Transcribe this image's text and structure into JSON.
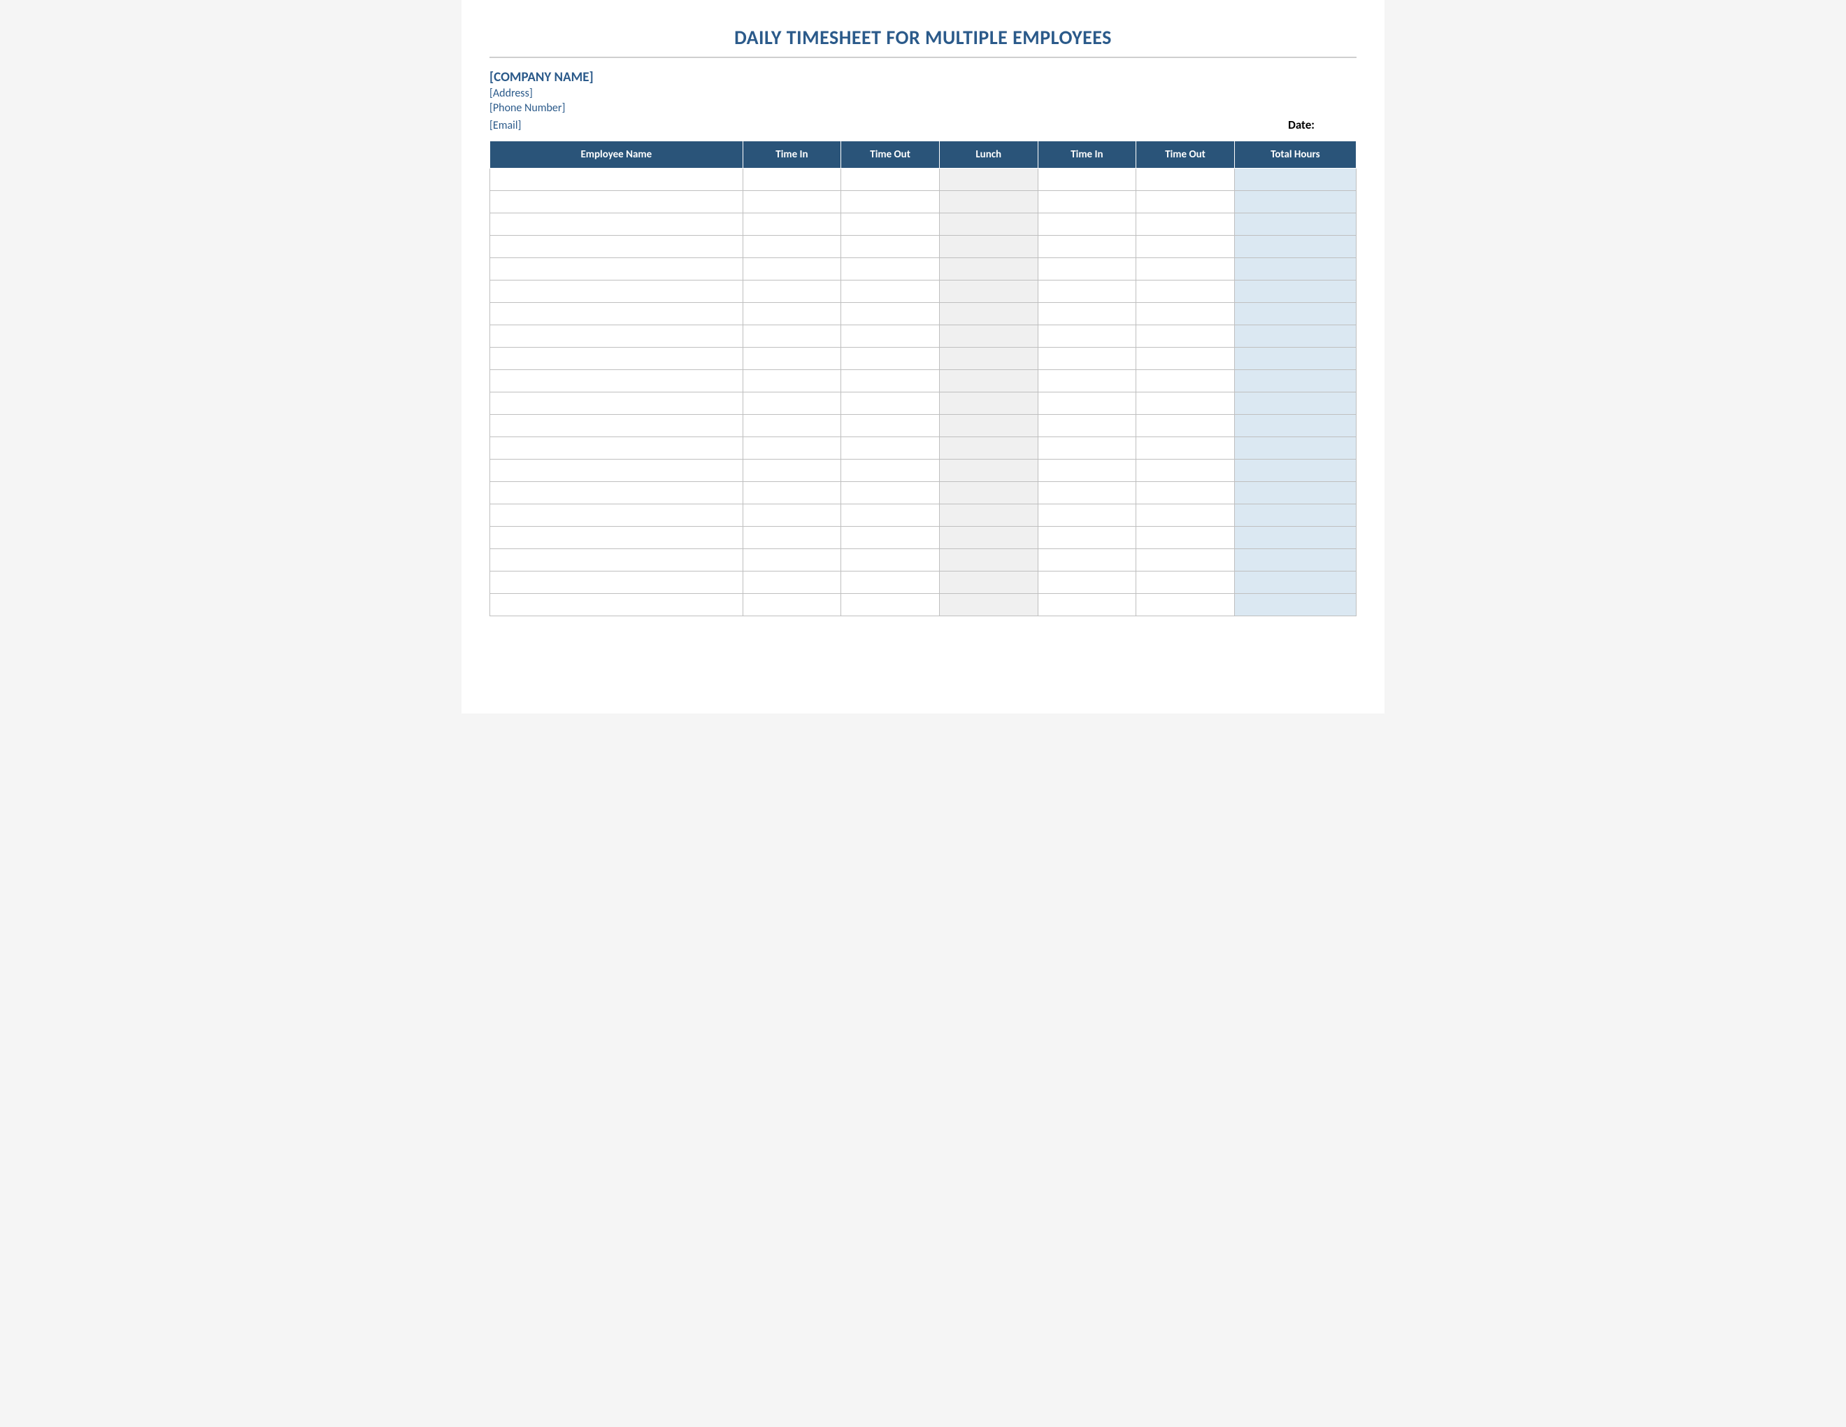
{
  "colors": {
    "title_text": "#2b5a8a",
    "rule": "#cfcfcf",
    "company_text": "#2b5a8a",
    "header_bg": "#2a5479",
    "header_text": "#ffffff",
    "cell_border": "#bfbfbf",
    "lunch_bg": "#f0f0f0",
    "total_bg": "#dbe8f2",
    "page_bg": "#ffffff"
  },
  "title": "DAILY TIMESHEET FOR MULTIPLE EMPLOYEES",
  "company": {
    "name": "[COMPANY NAME]",
    "address": "[Address]",
    "phone": "[Phone Number]",
    "email": "[Email]"
  },
  "date_label": "Date:",
  "table": {
    "columns": [
      {
        "key": "employee_name",
        "label": "Employee Name",
        "class": "col-name",
        "shade": "none"
      },
      {
        "key": "time_in_1",
        "label": "Time In",
        "class": "col-time",
        "shade": "none"
      },
      {
        "key": "time_out_1",
        "label": "Time Out",
        "class": "col-time",
        "shade": "none"
      },
      {
        "key": "lunch",
        "label": "Lunch",
        "class": "col-lunch",
        "shade": "lunch"
      },
      {
        "key": "time_in_2",
        "label": "Time In",
        "class": "col-time",
        "shade": "none"
      },
      {
        "key": "time_out_2",
        "label": "Time Out",
        "class": "col-time",
        "shade": "none"
      },
      {
        "key": "total_hours",
        "label": "Total Hours",
        "class": "col-total",
        "shade": "total"
      }
    ],
    "row_count": 20
  }
}
